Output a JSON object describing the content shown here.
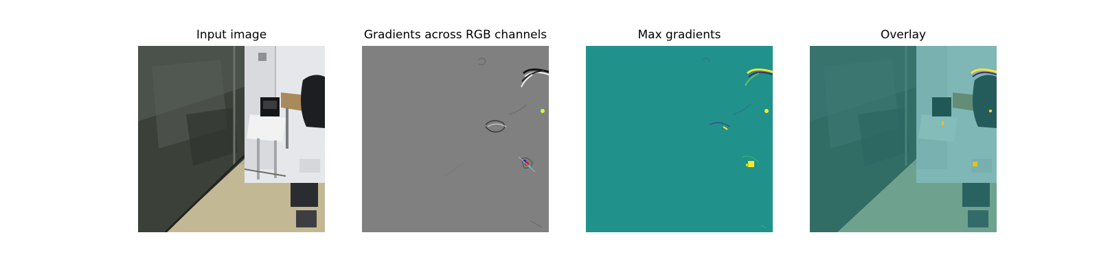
{
  "figure": {
    "panels": [
      {
        "title": "Input image"
      },
      {
        "title": "Gradients across RGB channels"
      },
      {
        "title": "Max gradients"
      },
      {
        "title": "Overlay"
      }
    ]
  },
  "colors": {
    "background": "#ffffff",
    "gradient_gray": "#808080",
    "max_grad_teal": "#21918c",
    "highlight_yellow": "#fde725",
    "overlay_tint": "#2a8f8a"
  }
}
